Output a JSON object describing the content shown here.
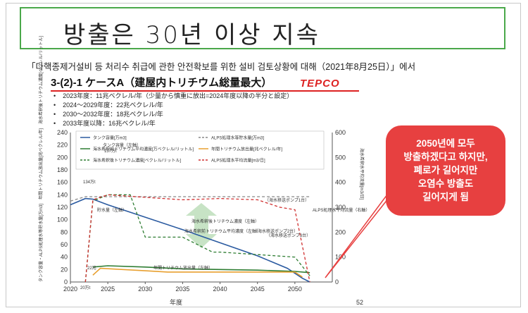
{
  "slide": {
    "title": "방출은 30년 이상 지속",
    "source": "「다핵종제거설비 등 처리수 취급에 관한 안전확보를 위한 설비 검토상황에 대해（2021年8月25日）」에서",
    "heading": "3-(2)-1 ケースA（建屋内トリチウム総量最大）",
    "logo": "TEPCO",
    "bullets": [
      "2023年度：11兆ベクレル/年（少量から慎重に放出=2024年度以降の半分と設定）",
      "2024～2029年度：22兆ベクレル/年",
      "2030～2032年度：18兆ベクレル/年",
      "2033年度以降：16兆ベクレル/年"
    ],
    "callout": [
      "2050년에 모두",
      "방출하겠다고 하지만,",
      "폐로가 길어지만",
      "오염수 방출도",
      "길어지게 됨"
    ],
    "page_number": "52"
  },
  "colors": {
    "frame": "#4aa84a",
    "accent": "#dd2222",
    "blue": "#2a5aa0",
    "green": "#2e7d32",
    "orange": "#e8a030",
    "dashred": "#d03030"
  },
  "chart_data": {
    "type": "line",
    "xlabel": "年度",
    "ylabel_left": "タンク容量・ALPS処理水等貯水量[万m3]　年間トリチウム放出量[兆ベクレル/年]　海水希釈後トリチウム濃度[ベクレル/リットル]",
    "ylabel_right": "海水希釈水平均流量[m3/日]",
    "xlim": [
      2020,
      2055
    ],
    "ylim_left": [
      0,
      240
    ],
    "ylim_right": [
      0,
      600
    ],
    "x_ticks": [
      "2020",
      "2025",
      "2030",
      "2035",
      "2040",
      "2045",
      "2050"
    ],
    "y_ticks_left": [
      "0",
      "20",
      "40",
      "60",
      "80",
      "100",
      "120",
      "140",
      "160",
      "180",
      "200",
      "220",
      "240"
    ],
    "y_ticks_right": [
      "0",
      "100",
      "200",
      "300",
      "400",
      "500",
      "600"
    ],
    "legend": [
      "タンク容量[万m3]",
      "ALPS処理水等貯水量[万m3]",
      "海水希釈前トリチウム平均濃度[万ベクレル/リットル]",
      "年間トリチウム放出量[兆ベクレル/年]",
      "海水希釈後トリチウム濃度[ベクレル/リットル]",
      "ALPS処理水平均流量[m3/日]"
    ],
    "annotations": [
      "タンク容量（左軸）",
      "137万t",
      "134万t",
      "貯水量（左軸）",
      "（海水移送ポンプ1台）",
      "ALPS処理水平均流量（右軸）",
      "海水希釈後トリチウム濃度（左軸）",
      "（海水移送ポンプ2台）",
      "（海水移送ポンプ3台）",
      "海水希釈前トリチウム平均濃度（左軸）",
      "年間トリチウム放出量（左軸）",
      "22兆",
      "20万t"
    ],
    "series": [
      {
        "name": "ALPS処理水等貯水量[万m3]",
        "axis": "left",
        "style": "solid",
        "color": "#2a5aa0",
        "x": [
          2020,
          2022,
          2023,
          2025,
          2030,
          2035,
          2040,
          2045,
          2049,
          2051,
          2052
        ],
        "y": [
          124,
          134,
          133,
          124,
          104,
          84,
          63,
          42,
          22,
          6,
          0
        ]
      },
      {
        "name": "タンク容量[万m3]",
        "axis": "left",
        "style": "dashed",
        "color": "#888888",
        "x": [
          2020,
          2022,
          2023,
          2052
        ],
        "y": [
          130,
          137,
          137,
          137
        ]
      },
      {
        "name": "海水希釈前トリチウム平均濃度[万ベクレル/リットル]",
        "axis": "left",
        "style": "solid",
        "color": "#2e7d32",
        "x": [
          2023,
          2025,
          2030,
          2035,
          2040,
          2045,
          2050,
          2052
        ],
        "y": [
          24,
          26,
          24,
          21,
          20,
          19,
          17,
          15
        ]
      },
      {
        "name": "年間トリチウム放出量[兆ベクレル/年]",
        "axis": "left",
        "style": "solid",
        "color": "#e8a030",
        "x": [
          2023,
          2024,
          2030,
          2033,
          2050,
          2051
        ],
        "y": [
          11,
          22,
          18,
          16,
          16,
          8
        ]
      },
      {
        "name": "海水希釈後トリチウム濃度[ベクレル/リットル]",
        "axis": "left",
        "style": "dashed",
        "color": "#2e7d32",
        "x": [
          2022,
          2023,
          2025,
          2028,
          2030,
          2035,
          2039,
          2040,
          2050,
          2052
        ],
        "y": [
          0,
          130,
          140,
          140,
          72,
          72,
          48,
          48,
          40,
          10
        ]
      },
      {
        "name": "ALPS処理水平均流量[m3/日]",
        "axis": "right",
        "style": "dashed",
        "color": "#d03030",
        "x": [
          2022,
          2023,
          2025,
          2030,
          2035,
          2040,
          2045,
          2048,
          2050,
          2052
        ],
        "y": [
          0,
          330,
          350,
          340,
          330,
          335,
          330,
          300,
          290,
          0
        ]
      }
    ]
  }
}
